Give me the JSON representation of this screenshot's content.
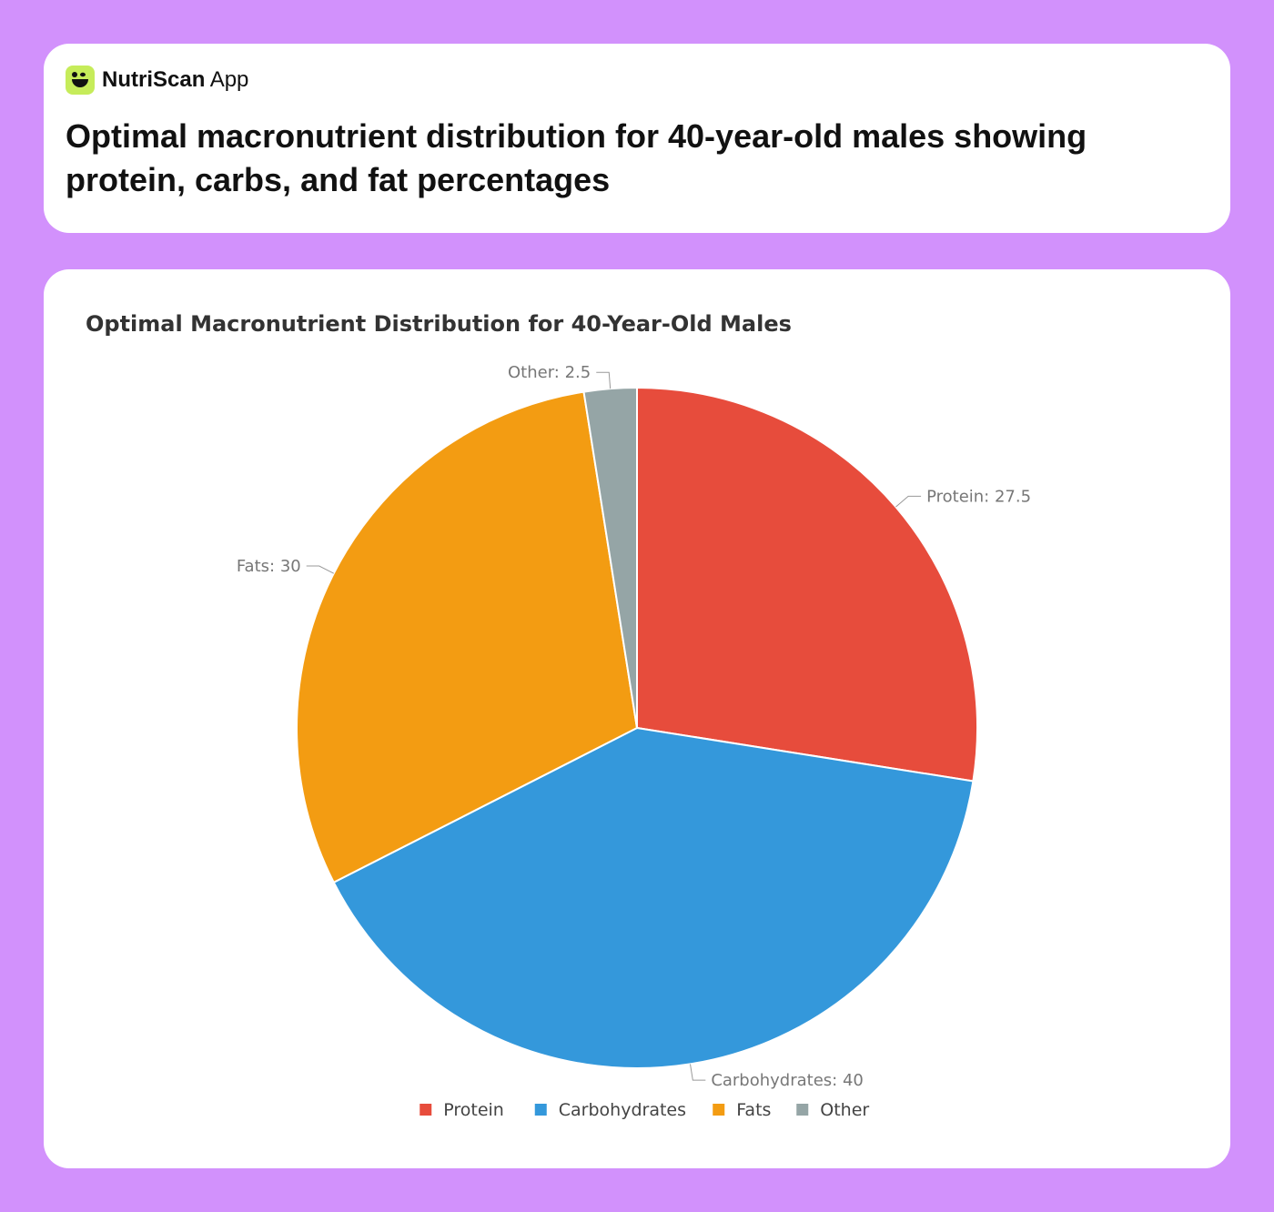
{
  "app": {
    "name": "NutriScan",
    "suffix": "App",
    "logo_icon": "leaf-bowl-icon",
    "logo_color": "#c6ec5a"
  },
  "header": {
    "title": "Optimal macronutrient distribution for 40-year-old males showing protein, carbs, and fat percentages"
  },
  "chart_data": {
    "type": "pie",
    "title": "Optimal Macronutrient Distribution for 40-Year-Old Males",
    "categories": [
      "Protein",
      "Carbohydrates",
      "Fats",
      "Other"
    ],
    "values": [
      27.5,
      40,
      30,
      2.5
    ],
    "colors": [
      "#e74c3c",
      "#3498db",
      "#f39c12",
      "#95a5a6"
    ],
    "data_labels": [
      "Protein: 27.5",
      "Carbohydrates: 40",
      "Fats: 30",
      "Other: 2.5"
    ],
    "legend_position": "bottom"
  }
}
